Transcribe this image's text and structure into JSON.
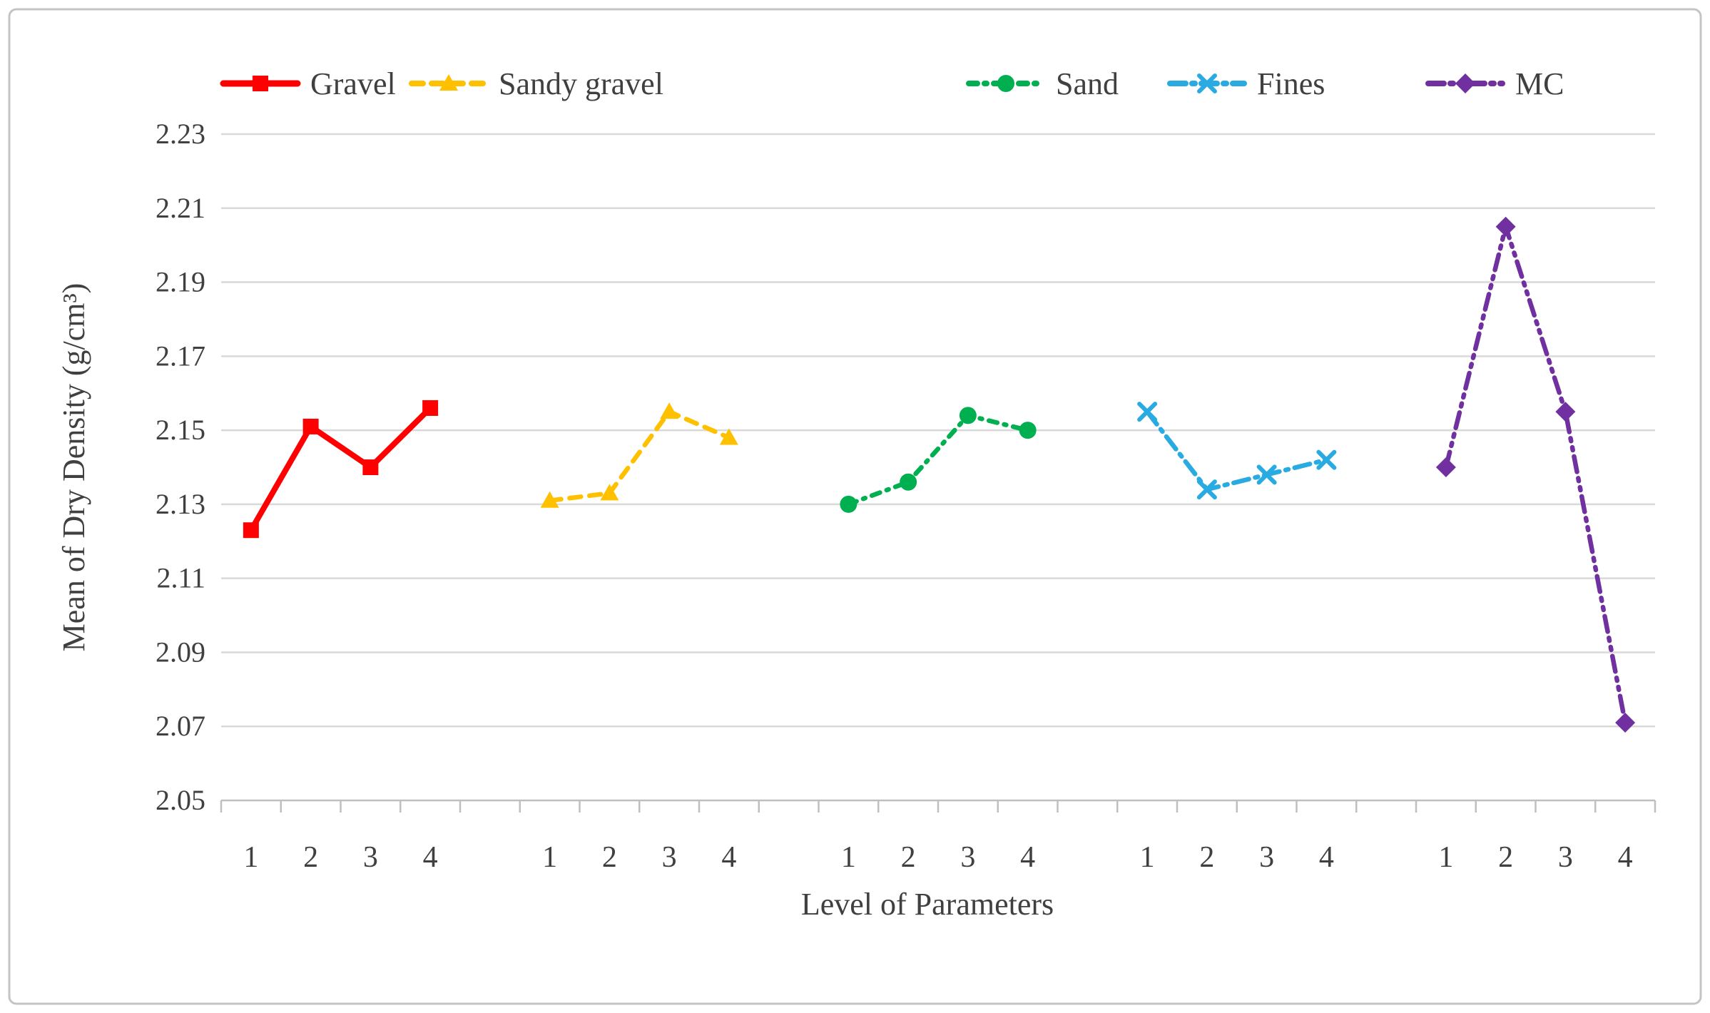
{
  "figure": {
    "background": "#FFFFFF",
    "border_color": "#C4C4C4",
    "text_color": "#404040",
    "gridline_color": "#D9D9D9",
    "axis_color": "#BFBFBF"
  },
  "chart_data": {
    "type": "line",
    "title": "",
    "xlabel": "Level of Parameters",
    "ylabel": "Mean of Dry Density (g/cm³)",
    "ylim": [
      2.05,
      2.23
    ],
    "yticks": [
      2.05,
      2.07,
      2.09,
      2.11,
      2.13,
      2.15,
      2.17,
      2.19,
      2.21,
      2.23
    ],
    "grid": true,
    "legend_position": "top",
    "x_group_labels": [
      "1",
      "2",
      "3",
      "4"
    ],
    "groups_note": "5 separated groups on shared x axis, each with levels 1-4",
    "series": [
      {
        "name": "Gravel",
        "color": "#FF0000",
        "marker": "square",
        "dash": "solid",
        "values": [
          2.123,
          2.151,
          2.14,
          2.156
        ]
      },
      {
        "name": "Sandy gravel",
        "color": "#FFC000",
        "marker": "triangle",
        "dash": "dashed",
        "values": [
          2.131,
          2.133,
          2.155,
          2.148
        ]
      },
      {
        "name": "Sand",
        "color": "#00B050",
        "marker": "circle",
        "dash": "dash-dot",
        "values": [
          2.13,
          2.136,
          2.154,
          2.15
        ]
      },
      {
        "name": "Fines",
        "color": "#29ABE2",
        "marker": "x",
        "dash": "long-dash-dot",
        "values": [
          2.155,
          2.134,
          2.138,
          2.142
        ]
      },
      {
        "name": "MC",
        "color": "#7030A0",
        "marker": "diamond",
        "dash": "long-dash-dot-dot",
        "values": [
          2.14,
          2.205,
          2.155,
          2.071
        ]
      }
    ]
  }
}
